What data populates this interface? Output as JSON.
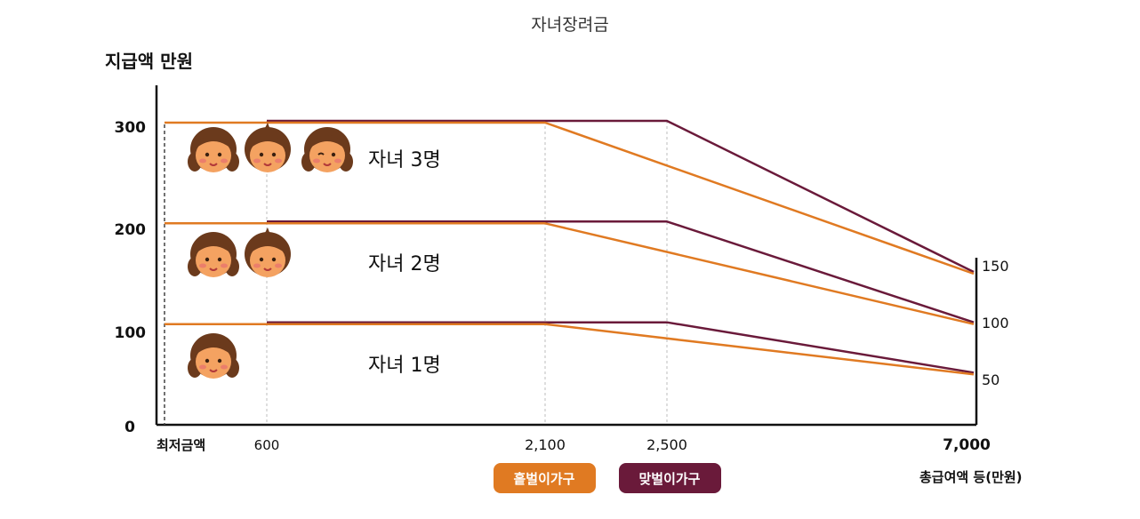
{
  "chart_data": {
    "type": "line",
    "title": "자녀장려금",
    "ylabel": "지급액 만원",
    "xlabel": "총급여액 등(만원)",
    "xmin_label": "최저금액",
    "yticks": [
      "0",
      "100",
      "200",
      "300"
    ],
    "xticks": [
      "600",
      "2,100",
      "2,500",
      "7,000"
    ],
    "right_labels": [
      "150",
      "100",
      "50"
    ],
    "ylim": [
      0,
      300
    ],
    "groups": [
      {
        "label": "자녀 3명",
        "children": 3,
        "single": [
          [
            0,
            300
          ],
          [
            2100,
            300
          ],
          [
            7000,
            150
          ]
        ],
        "dual": [
          [
            600,
            300
          ],
          [
            2500,
            300
          ],
          [
            7000,
            150
          ]
        ]
      },
      {
        "label": "자녀 2명",
        "children": 2,
        "single": [
          [
            0,
            200
          ],
          [
            2100,
            200
          ],
          [
            7000,
            100
          ]
        ],
        "dual": [
          [
            600,
            200
          ],
          [
            2500,
            200
          ],
          [
            7000,
            100
          ]
        ]
      },
      {
        "label": "자녀 1명",
        "children": 1,
        "single": [
          [
            0,
            100
          ],
          [
            2100,
            100
          ],
          [
            7000,
            50
          ]
        ],
        "dual": [
          [
            600,
            100
          ],
          [
            2500,
            100
          ],
          [
            7000,
            50
          ]
        ]
      }
    ],
    "legend": [
      {
        "name": "홑벌이가구",
        "color": "#e07a22"
      },
      {
        "name": "맞벌이가구",
        "color": "#6a1a3a"
      }
    ]
  }
}
